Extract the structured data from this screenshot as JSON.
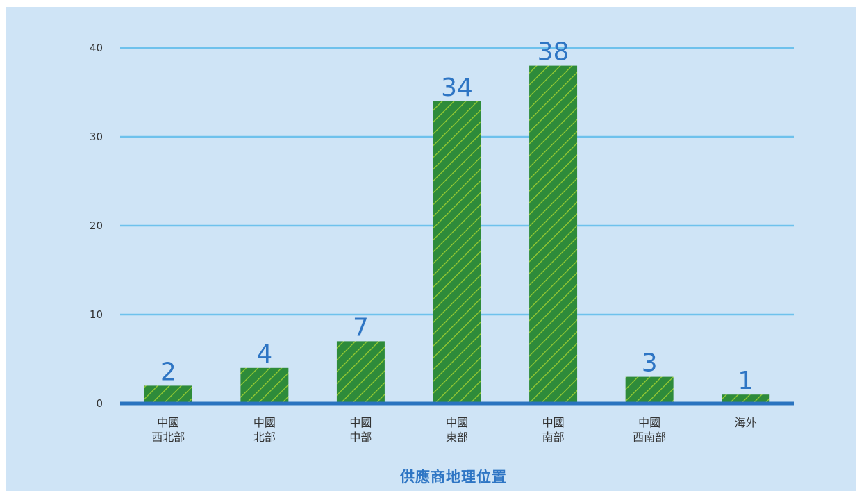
{
  "chart_data": {
    "type": "bar",
    "categories": [
      [
        "中國",
        "西北部"
      ],
      [
        "中國",
        "北部"
      ],
      [
        "中國",
        "中部"
      ],
      [
        "中國",
        "東部"
      ],
      [
        "中國",
        "南部"
      ],
      [
        "中國",
        "西南部"
      ],
      [
        "海外"
      ]
    ],
    "values": [
      2,
      4,
      7,
      34,
      38,
      3,
      1
    ],
    "data_labels": [
      "2",
      "4",
      "7",
      "34",
      "38",
      "3",
      "1"
    ],
    "xlabel": "供應商地理位置",
    "ylabel": "",
    "ylim": [
      0,
      40
    ],
    "yticks": [
      "0",
      "10",
      "20",
      "30",
      "40"
    ],
    "grid": true,
    "legend": "none",
    "colors": {
      "background": "#cfe4f6",
      "gridline": "#6ec1ec",
      "baseline": "#2a73bf",
      "bar_fill": "#2e8b3a",
      "bar_hatch": "#9acd32",
      "data_label": "#2e75c4",
      "axis_title": "#2e75c4",
      "tick_text": "#333333"
    }
  }
}
